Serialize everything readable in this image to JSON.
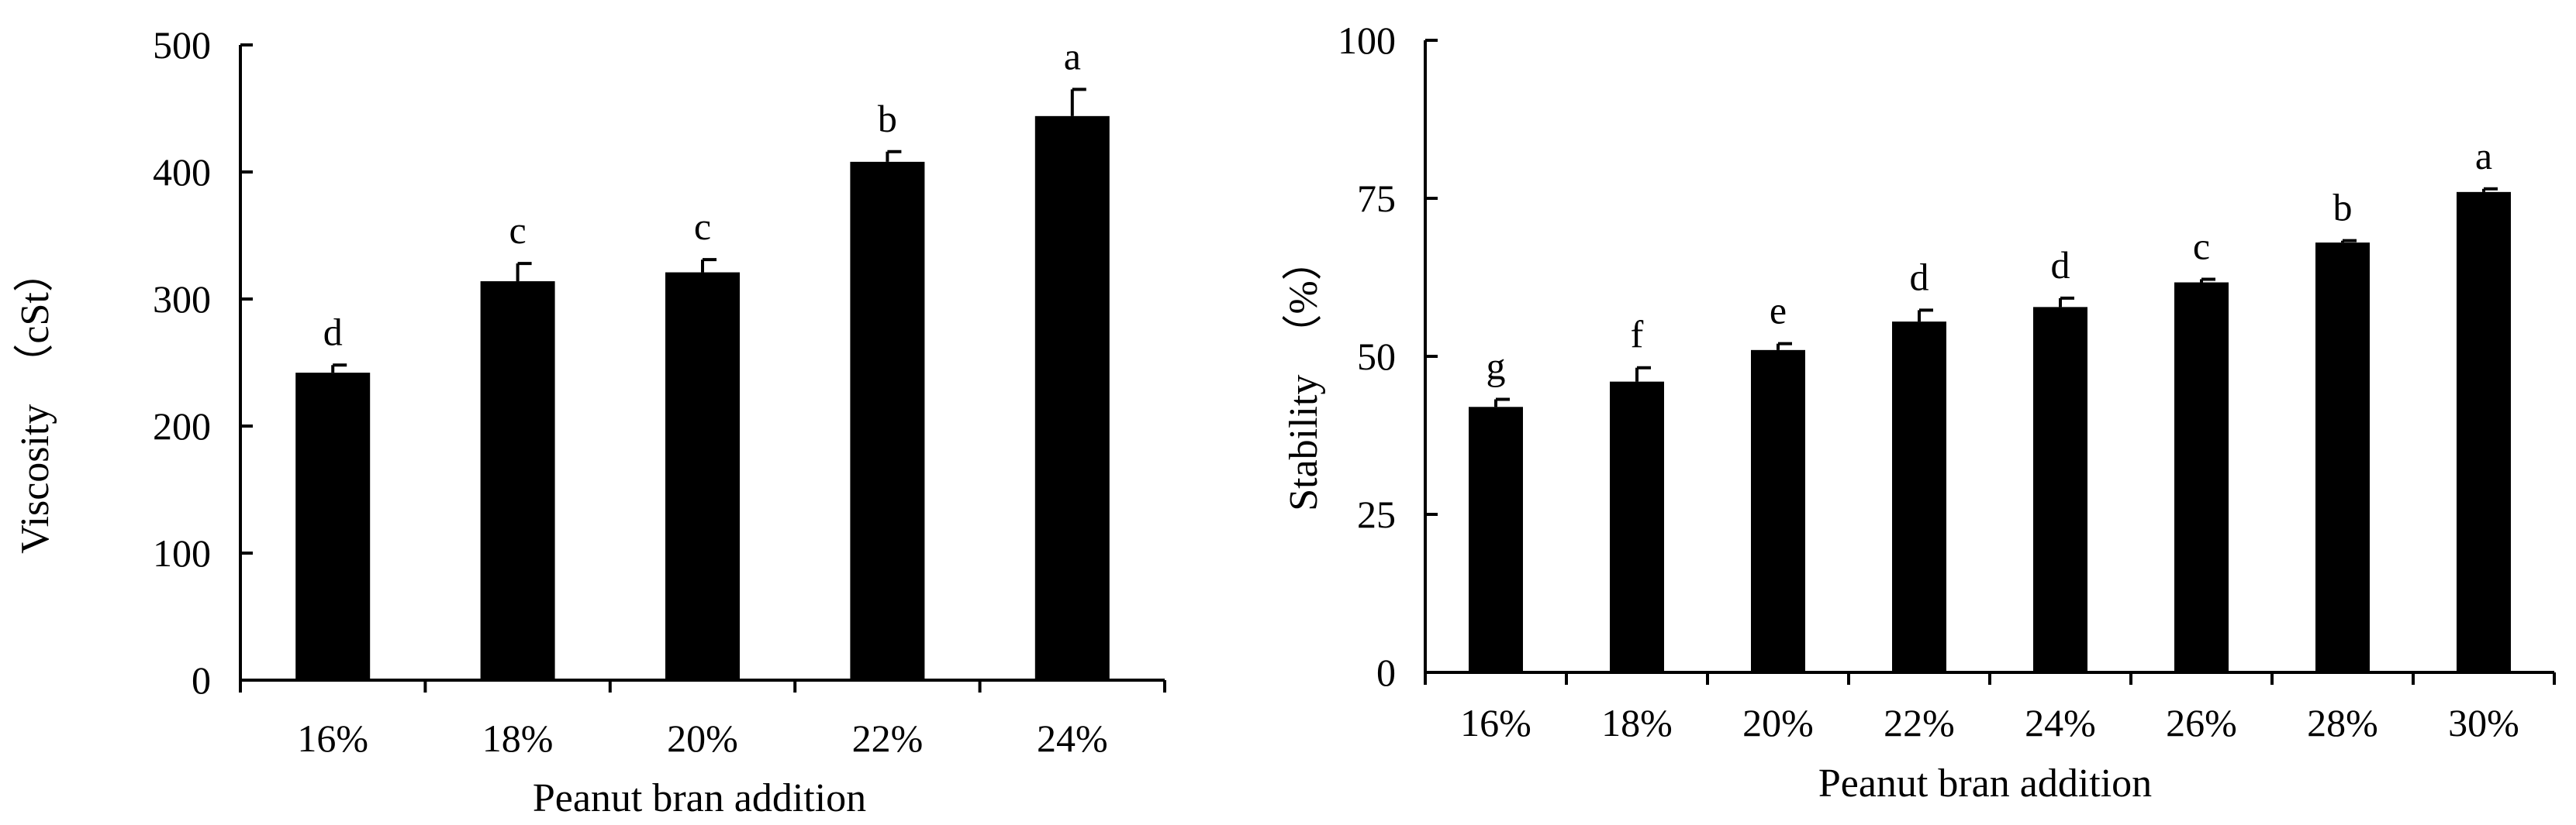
{
  "chart_data": [
    {
      "type": "bar",
      "xlabel": "Peanut bran addition",
      "ylabel": "Viscosity　（cSt）",
      "ylim": [
        0,
        500
      ],
      "yticks": [
        "0",
        "100",
        "200",
        "300",
        "400",
        "500"
      ],
      "categories": [
        "16%",
        "18%",
        "20%",
        "22%",
        "24%"
      ],
      "values": [
        242,
        314,
        321,
        408,
        444
      ],
      "errors": [
        6,
        14,
        10,
        8,
        21
      ],
      "labels": [
        "d",
        "c",
        "c",
        "b",
        "a"
      ],
      "bar_color": "#000000",
      "grid": false
    },
    {
      "type": "bar",
      "xlabel": "Peanut bran addition",
      "ylabel": "Stability　（%）",
      "ylim": [
        0,
        100
      ],
      "yticks": [
        "0",
        "25",
        "50",
        "75",
        "100"
      ],
      "categories": [
        "16%",
        "18%",
        "20%",
        "22%",
        "24%",
        "26%",
        "28%",
        "30%"
      ],
      "values": [
        42,
        46,
        51,
        55.5,
        57.8,
        61.7,
        68,
        76
      ],
      "errors": [
        1.2,
        2.2,
        1.0,
        1.8,
        1.4,
        0.5,
        0.3,
        0.5
      ],
      "labels": [
        "g",
        "f",
        "e",
        "d",
        "d",
        "c",
        "b",
        "a"
      ],
      "bar_color": "#000000",
      "grid": false
    }
  ]
}
